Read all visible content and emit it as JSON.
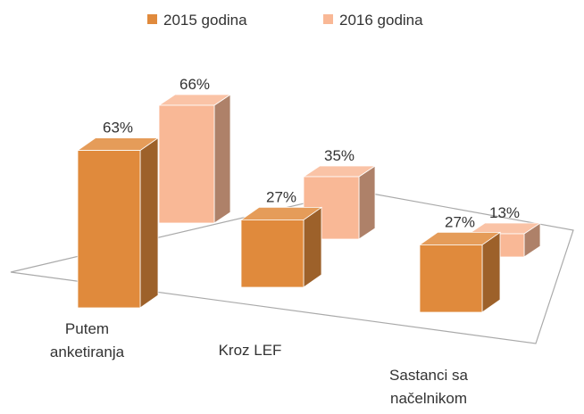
{
  "chart_data": {
    "type": "bar3d",
    "categories": [
      "Putem anketiranja",
      "Kroz LEF",
      "Sastanci sa načelnikom"
    ],
    "series": [
      {
        "name": "2015 godina",
        "color": "#e08a3c",
        "values": [
          63,
          27,
          27
        ],
        "value_labels": [
          "63%",
          "27%",
          "27%"
        ]
      },
      {
        "name": "2016 godina",
        "color": "#f9b896",
        "values": [
          66,
          35,
          13
        ],
        "value_labels": [
          "66%",
          "35%",
          "13%"
        ]
      }
    ],
    "legend": "top"
  }
}
